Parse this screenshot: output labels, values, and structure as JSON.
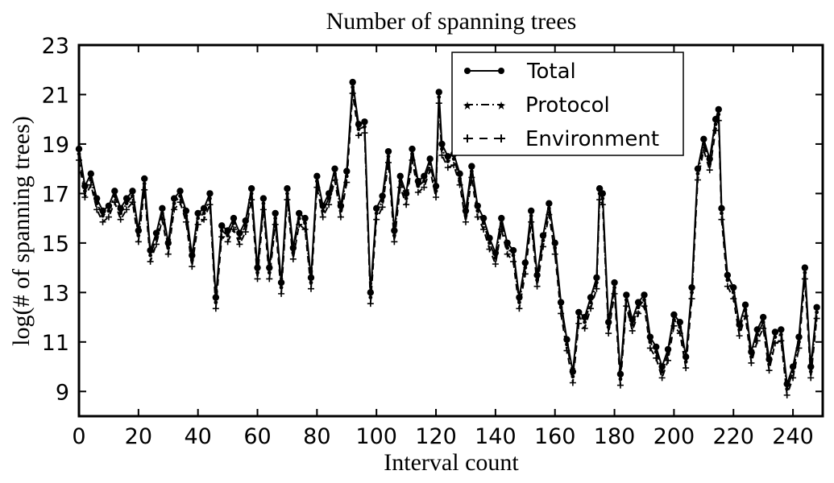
{
  "chart_data": {
    "type": "line",
    "title": "Number of spanning trees",
    "xlabel": "Interval count",
    "ylabel": "log(# of spanning trees)",
    "xlim": [
      0,
      250
    ],
    "ylim": [
      8,
      23
    ],
    "xticks": [
      0,
      20,
      40,
      60,
      80,
      100,
      120,
      140,
      160,
      180,
      200,
      220,
      240
    ],
    "yticks": [
      9,
      11,
      13,
      15,
      17,
      19,
      21,
      23
    ],
    "grid": false,
    "legend_position": "top-right",
    "series": [
      {
        "name": "Total",
        "marker": "circle",
        "linestyle": "solid",
        "x": [
          0,
          2,
          4,
          6,
          8,
          10,
          12,
          14,
          16,
          18,
          20,
          22,
          24,
          26,
          28,
          30,
          32,
          34,
          36,
          38,
          40,
          42,
          44,
          46,
          48,
          50,
          52,
          54,
          56,
          58,
          60,
          62,
          64,
          66,
          68,
          70,
          72,
          74,
          76,
          78,
          80,
          82,
          84,
          86,
          88,
          90,
          92,
          94,
          96,
          98,
          100,
          102,
          104,
          106,
          108,
          110,
          112,
          114,
          116,
          118,
          120,
          121,
          122,
          124,
          126,
          128,
          130,
          132,
          134,
          136,
          138,
          140,
          142,
          144,
          146,
          148,
          150,
          152,
          154,
          156,
          158,
          160,
          162,
          164,
          166,
          168,
          170,
          172,
          174,
          175,
          176,
          178,
          180,
          182,
          184,
          186,
          188,
          190,
          192,
          194,
          196,
          198,
          200,
          202,
          204,
          206,
          208,
          210,
          212,
          214,
          215,
          216,
          218,
          220,
          222,
          224,
          226,
          228,
          230,
          232,
          234,
          236,
          238,
          240,
          242,
          244,
          246,
          248
        ],
        "values": [
          18.8,
          17.3,
          17.8,
          16.8,
          16.3,
          16.5,
          17.1,
          16.4,
          16.8,
          17.1,
          15.5,
          17.6,
          14.7,
          15.4,
          16.4,
          15.0,
          16.8,
          17.1,
          16.3,
          14.5,
          16.2,
          16.4,
          17.0,
          12.8,
          15.7,
          15.5,
          16.0,
          15.4,
          15.9,
          17.2,
          14.0,
          16.8,
          14.0,
          16.2,
          13.4,
          17.2,
          14.8,
          16.2,
          16.0,
          13.6,
          17.7,
          16.5,
          17.0,
          18.0,
          16.5,
          17.9,
          21.5,
          19.8,
          19.9,
          13.0,
          16.4,
          16.9,
          18.7,
          15.5,
          17.7,
          17.0,
          18.8,
          17.5,
          17.7,
          18.4,
          17.3,
          21.1,
          19.0,
          18.5,
          18.6,
          17.8,
          16.3,
          18.1,
          16.5,
          16.0,
          15.2,
          14.6,
          16.0,
          15.0,
          14.7,
          12.8,
          14.2,
          16.3,
          13.7,
          15.3,
          16.6,
          15.0,
          12.6,
          11.1,
          9.8,
          12.2,
          12.0,
          12.8,
          13.6,
          17.2,
          17.0,
          11.8,
          13.4,
          9.7,
          12.9,
          11.9,
          12.6,
          12.9,
          11.2,
          10.8,
          10.0,
          10.7,
          12.1,
          11.8,
          10.4,
          13.2,
          18.0,
          19.2,
          18.4,
          20.0,
          20.4,
          16.4,
          13.7,
          13.2,
          11.7,
          12.5,
          10.6,
          11.5,
          12.0,
          10.3,
          11.4,
          11.5,
          9.3,
          10.0,
          11.2,
          14.0,
          10.0,
          12.4
        ]
      },
      {
        "name": "Protocol",
        "marker": "star",
        "linestyle": "dash-dot",
        "offset_from_total": -0.2
      },
      {
        "name": "Environment",
        "marker": "plus",
        "linestyle": "dashed",
        "offset_from_total": -0.45
      }
    ]
  }
}
